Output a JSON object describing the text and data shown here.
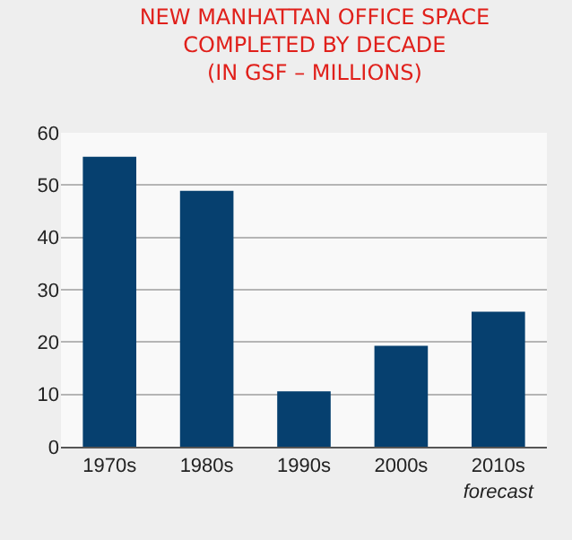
{
  "chart_data": {
    "type": "bar",
    "title": "NEW MANHATTAN OFFICE SPACE\nCOMPLETED BY DECADE\n(IN GSF – MILLIONS)",
    "categories": [
      "1970s",
      "1980s",
      "1990s",
      "2000s",
      "2010s\nforecast"
    ],
    "values": [
      55.4,
      48.9,
      10.6,
      19.3,
      25.8
    ],
    "color": "#06406f",
    "ylim": [
      0,
      60
    ],
    "yticks": [
      0,
      10,
      20,
      30,
      40,
      50,
      60
    ],
    "grid": "y"
  }
}
